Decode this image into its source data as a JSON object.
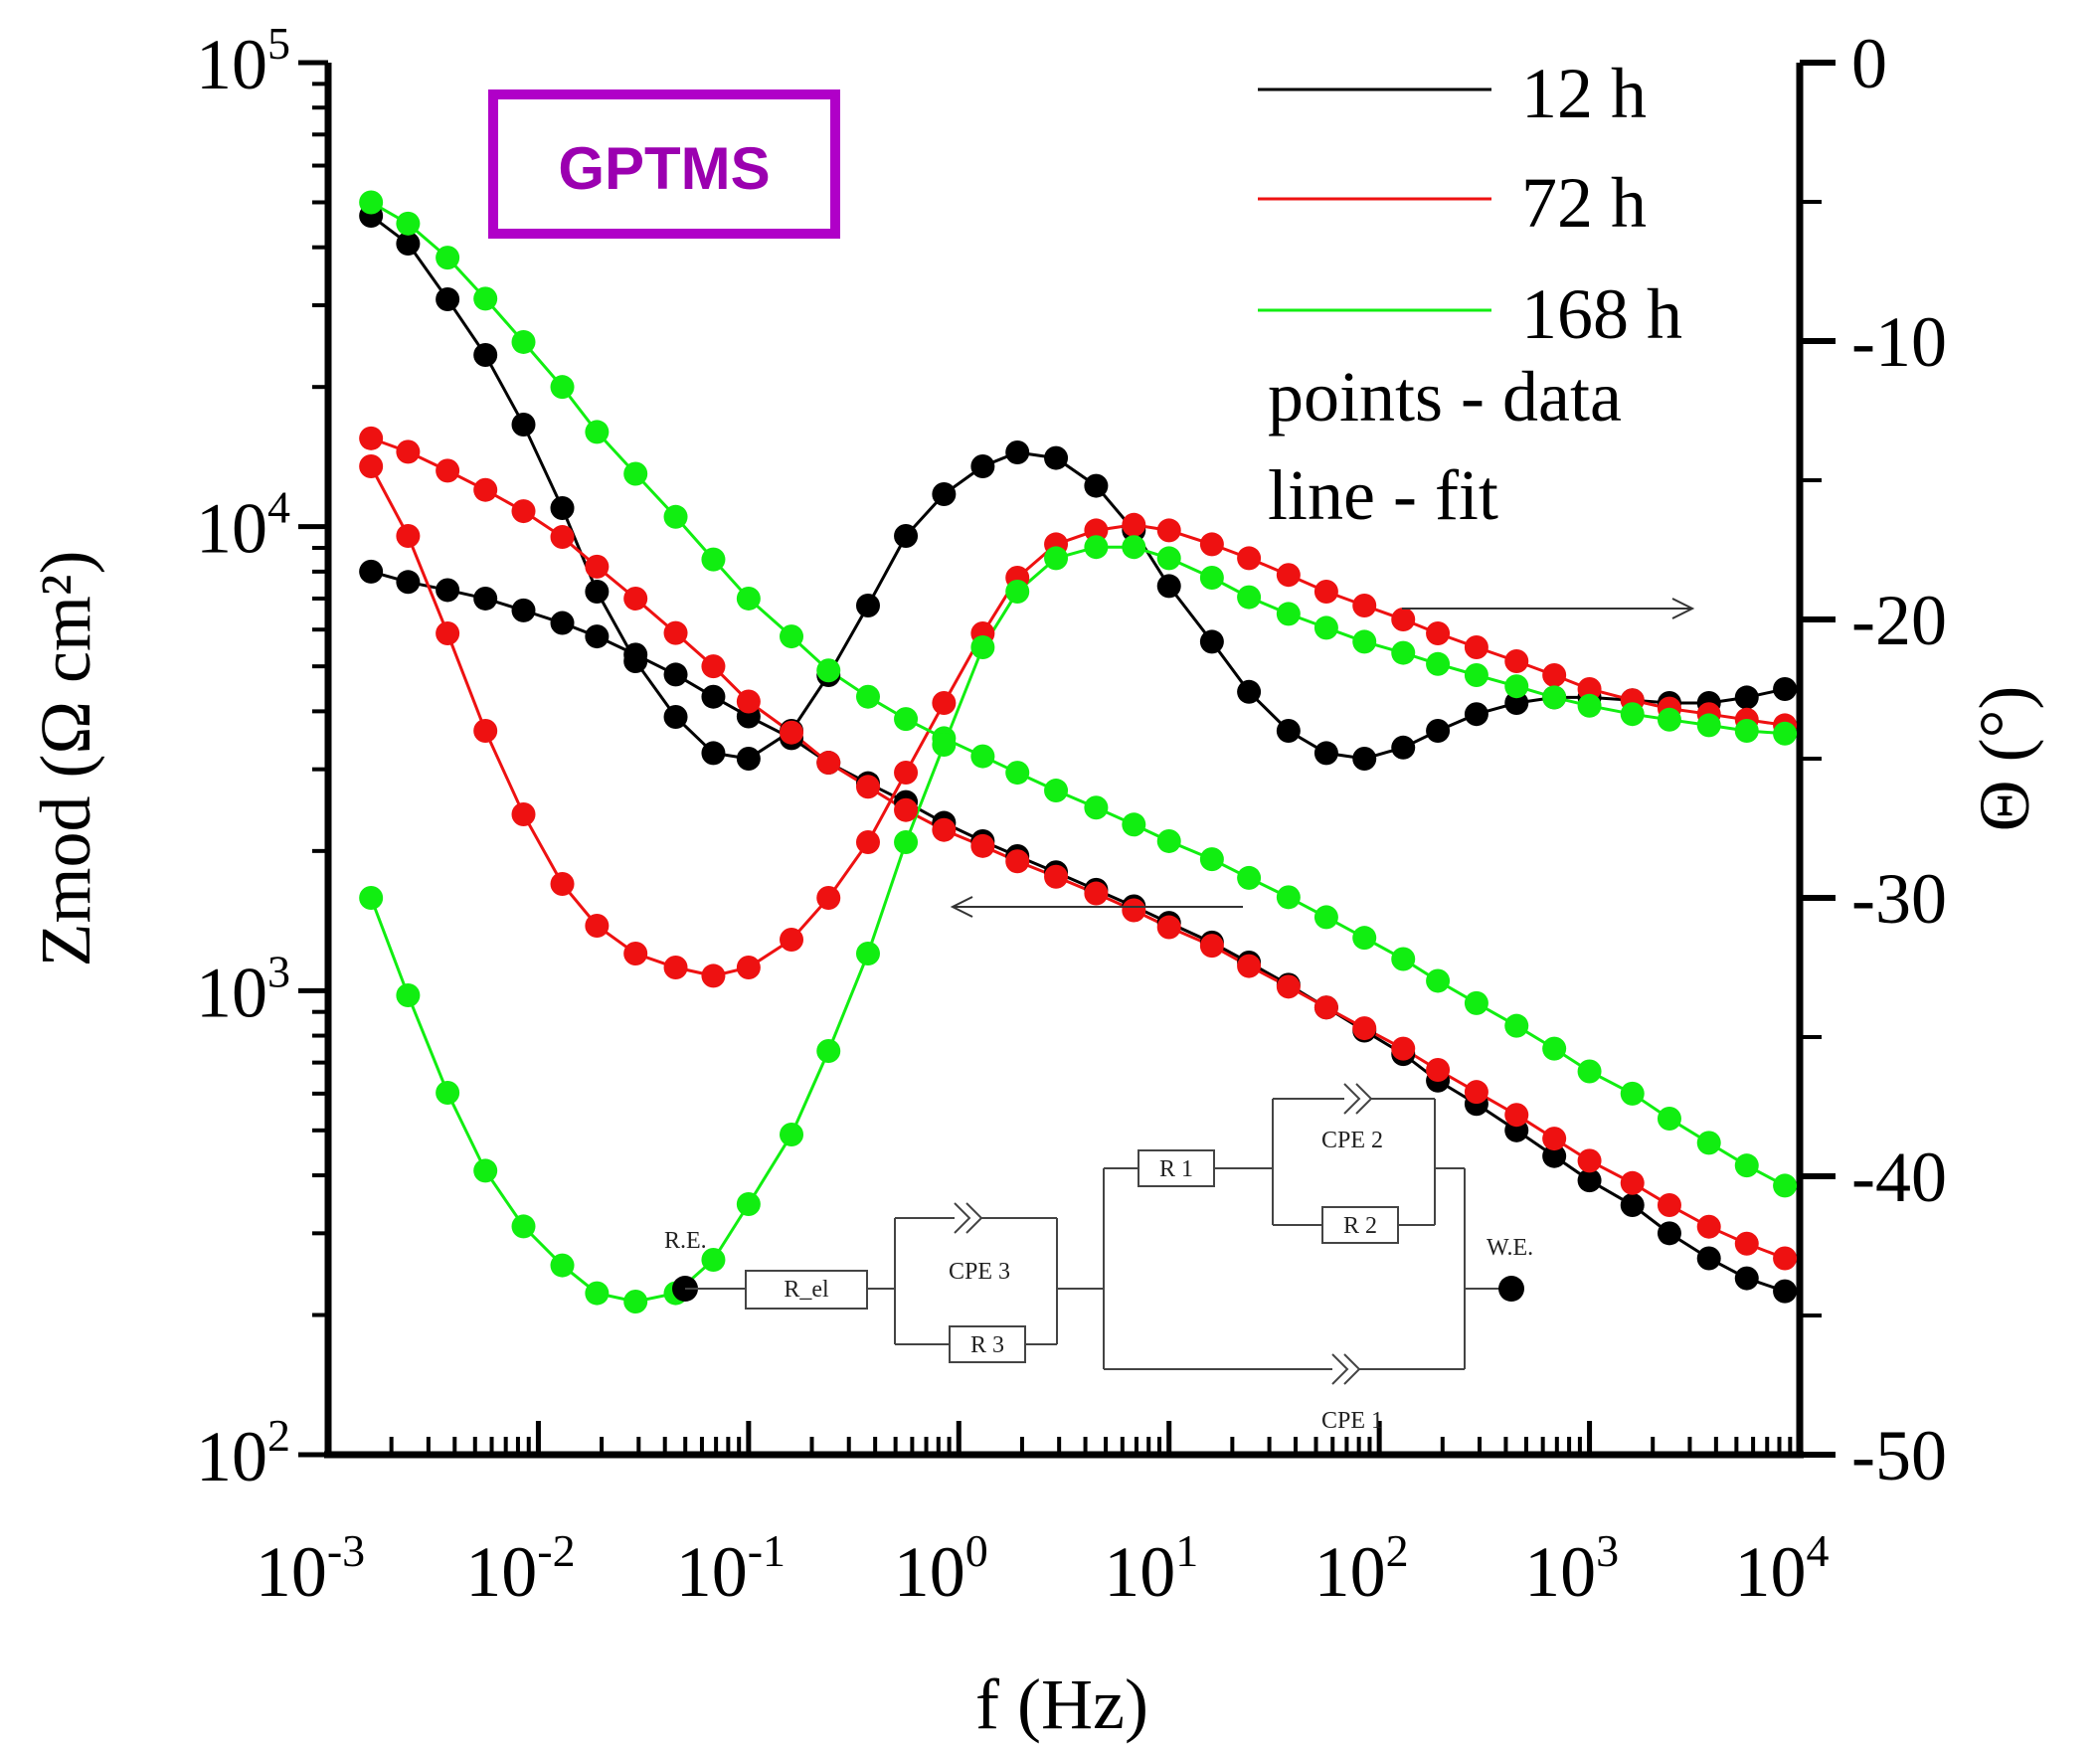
{
  "chart_data": {
    "type": "line",
    "title_box": "GPTMS",
    "xlabel": "f (Hz)",
    "ylabel_left": "Zmod (Ω cm²)",
    "ylabel_right": "Θ (°)",
    "x_scale": "log",
    "x_ticks": [
      "10-3",
      "10-2",
      "10-1",
      "100",
      "101",
      "102",
      "103",
      "104"
    ],
    "left_ticks": [
      "102",
      "103",
      "104",
      "105"
    ],
    "right_ticks": [
      "0",
      "-10",
      "-20",
      "-30",
      "-40",
      "-50"
    ],
    "xlim": [
      0.001,
      10000
    ],
    "ylim_left": [
      100,
      100000
    ],
    "ylim_right": [
      -50,
      0
    ],
    "legend": [
      {
        "label": "12 h",
        "color": "#000000"
      },
      {
        "label": "72 h",
        "color": "#ee1111"
      },
      {
        "label": "168 h",
        "color": "#11ee11"
      }
    ],
    "legend_note_1": "points - data",
    "legend_note_2": "line - fit",
    "series": [
      {
        "name": "12 h",
        "quantity": "Zmod",
        "axis": "left",
        "color": "#000000",
        "points": [
          [
            0.0016,
            8000
          ],
          [
            0.0024,
            7600
          ],
          [
            0.0037,
            7300
          ],
          [
            0.0056,
            7000
          ],
          [
            0.0085,
            6600
          ],
          [
            0.013,
            6200
          ],
          [
            0.019,
            5800
          ],
          [
            0.029,
            5300
          ],
          [
            0.045,
            4800
          ],
          [
            0.068,
            4300
          ],
          [
            0.1,
            3900
          ],
          [
            0.16,
            3500
          ],
          [
            0.24,
            3100
          ],
          [
            0.37,
            2800
          ],
          [
            0.56,
            2550
          ],
          [
            0.85,
            2300
          ],
          [
            1.3,
            2100
          ],
          [
            1.9,
            1950
          ],
          [
            2.9,
            1800
          ],
          [
            4.5,
            1650
          ],
          [
            6.8,
            1520
          ],
          [
            10,
            1400
          ],
          [
            16,
            1270
          ],
          [
            24,
            1150
          ],
          [
            37,
            1030
          ],
          [
            56,
            920
          ],
          [
            85,
            820
          ],
          [
            130,
            730
          ],
          [
            190,
            640
          ],
          [
            290,
            570
          ],
          [
            450,
            500
          ],
          [
            680,
            440
          ],
          [
            1000,
            390
          ],
          [
            1600,
            345
          ],
          [
            2400,
            300
          ],
          [
            3700,
            265
          ],
          [
            5600,
            240
          ],
          [
            8500,
            225
          ]
        ]
      },
      {
        "name": "12 h",
        "quantity": "phase",
        "axis": "right",
        "color": "#000000",
        "points": [
          [
            0.0016,
            -5.5
          ],
          [
            0.0024,
            -6.5
          ],
          [
            0.0037,
            -8.5
          ],
          [
            0.0056,
            -10.5
          ],
          [
            0.0085,
            -13
          ],
          [
            0.013,
            -16
          ],
          [
            0.019,
            -19
          ],
          [
            0.029,
            -21.5
          ],
          [
            0.045,
            -23.5
          ],
          [
            0.068,
            -24.8
          ],
          [
            0.1,
            -25
          ],
          [
            0.16,
            -24
          ],
          [
            0.24,
            -22
          ],
          [
            0.37,
            -19.5
          ],
          [
            0.56,
            -17
          ],
          [
            0.85,
            -15.5
          ],
          [
            1.3,
            -14.5
          ],
          [
            1.9,
            -14
          ],
          [
            2.9,
            -14.2
          ],
          [
            4.5,
            -15.2
          ],
          [
            6.8,
            -16.8
          ],
          [
            10,
            -18.8
          ],
          [
            16,
            -20.8
          ],
          [
            24,
            -22.6
          ],
          [
            37,
            -24
          ],
          [
            56,
            -24.8
          ],
          [
            85,
            -25
          ],
          [
            130,
            -24.6
          ],
          [
            190,
            -24
          ],
          [
            290,
            -23.4
          ],
          [
            450,
            -23
          ],
          [
            680,
            -22.8
          ],
          [
            1000,
            -22.8
          ],
          [
            1600,
            -22.9
          ],
          [
            2400,
            -23
          ],
          [
            3700,
            -23
          ],
          [
            5600,
            -22.8
          ],
          [
            8500,
            -22.5
          ]
        ]
      },
      {
        "name": "72 h",
        "quantity": "Zmod",
        "axis": "left",
        "color": "#ee1111",
        "points": [
          [
            0.0016,
            15500
          ],
          [
            0.0024,
            14500
          ],
          [
            0.0037,
            13200
          ],
          [
            0.0056,
            12000
          ],
          [
            0.0085,
            10800
          ],
          [
            0.013,
            9500
          ],
          [
            0.019,
            8200
          ],
          [
            0.029,
            7000
          ],
          [
            0.045,
            5900
          ],
          [
            0.068,
            5000
          ],
          [
            0.1,
            4200
          ],
          [
            0.16,
            3600
          ],
          [
            0.24,
            3100
          ],
          [
            0.37,
            2750
          ],
          [
            0.56,
            2450
          ],
          [
            0.85,
            2220
          ],
          [
            1.3,
            2050
          ],
          [
            1.9,
            1900
          ],
          [
            2.9,
            1760
          ],
          [
            4.5,
            1620
          ],
          [
            6.8,
            1490
          ],
          [
            10,
            1370
          ],
          [
            16,
            1250
          ],
          [
            24,
            1130
          ],
          [
            37,
            1020
          ],
          [
            56,
            920
          ],
          [
            85,
            830
          ],
          [
            130,
            750
          ],
          [
            190,
            675
          ],
          [
            290,
            605
          ],
          [
            450,
            540
          ],
          [
            680,
            480
          ],
          [
            1000,
            430
          ],
          [
            1600,
            385
          ],
          [
            2400,
            345
          ],
          [
            3700,
            310
          ],
          [
            5600,
            285
          ],
          [
            8500,
            265
          ]
        ]
      },
      {
        "name": "72 h",
        "quantity": "phase",
        "axis": "right",
        "color": "#ee1111",
        "points": [
          [
            0.0016,
            -14.5
          ],
          [
            0.0024,
            -17
          ],
          [
            0.0037,
            -20.5
          ],
          [
            0.0056,
            -24
          ],
          [
            0.0085,
            -27
          ],
          [
            0.013,
            -29.5
          ],
          [
            0.019,
            -31
          ],
          [
            0.029,
            -32
          ],
          [
            0.045,
            -32.5
          ],
          [
            0.068,
            -32.8
          ],
          [
            0.1,
            -32.5
          ],
          [
            0.16,
            -31.5
          ],
          [
            0.24,
            -30
          ],
          [
            0.37,
            -28
          ],
          [
            0.56,
            -25.5
          ],
          [
            0.85,
            -23
          ],
          [
            1.3,
            -20.5
          ],
          [
            1.9,
            -18.5
          ],
          [
            2.9,
            -17.3
          ],
          [
            4.5,
            -16.8
          ],
          [
            6.8,
            -16.6
          ],
          [
            10,
            -16.8
          ],
          [
            16,
            -17.3
          ],
          [
            24,
            -17.8
          ],
          [
            37,
            -18.4
          ],
          [
            56,
            -19
          ],
          [
            85,
            -19.5
          ],
          [
            130,
            -20
          ],
          [
            190,
            -20.5
          ],
          [
            290,
            -21
          ],
          [
            450,
            -21.5
          ],
          [
            680,
            -22
          ],
          [
            1000,
            -22.5
          ],
          [
            1600,
            -22.9
          ],
          [
            2400,
            -23.2
          ],
          [
            3700,
            -23.4
          ],
          [
            5600,
            -23.6
          ],
          [
            8500,
            -23.8
          ]
        ]
      },
      {
        "name": "168 h",
        "quantity": "Zmod",
        "axis": "left",
        "color": "#11ee11",
        "points": [
          [
            0.0016,
            50000
          ],
          [
            0.0024,
            45000
          ],
          [
            0.0037,
            38000
          ],
          [
            0.0056,
            31000
          ],
          [
            0.0085,
            25000
          ],
          [
            0.013,
            20000
          ],
          [
            0.019,
            16000
          ],
          [
            0.029,
            13000
          ],
          [
            0.045,
            10500
          ],
          [
            0.068,
            8500
          ],
          [
            0.1,
            7000
          ],
          [
            0.16,
            5800
          ],
          [
            0.24,
            4900
          ],
          [
            0.37,
            4300
          ],
          [
            0.56,
            3850
          ],
          [
            0.85,
            3500
          ],
          [
            1.3,
            3200
          ],
          [
            1.9,
            2950
          ],
          [
            2.9,
            2700
          ],
          [
            4.5,
            2480
          ],
          [
            6.8,
            2280
          ],
          [
            10,
            2100
          ],
          [
            16,
            1920
          ],
          [
            24,
            1750
          ],
          [
            37,
            1590
          ],
          [
            56,
            1440
          ],
          [
            85,
            1300
          ],
          [
            130,
            1170
          ],
          [
            190,
            1050
          ],
          [
            290,
            940
          ],
          [
            450,
            840
          ],
          [
            680,
            750
          ],
          [
            1000,
            670
          ],
          [
            1600,
            600
          ],
          [
            2400,
            530
          ],
          [
            3700,
            470
          ],
          [
            5600,
            420
          ],
          [
            8500,
            380
          ]
        ]
      },
      {
        "name": "168 h",
        "quantity": "phase",
        "axis": "right",
        "color": "#11ee11",
        "points": [
          [
            0.0016,
            -30
          ],
          [
            0.0024,
            -33.5
          ],
          [
            0.0037,
            -37
          ],
          [
            0.0056,
            -39.8
          ],
          [
            0.0085,
            -41.8
          ],
          [
            0.013,
            -43.2
          ],
          [
            0.019,
            -44.2
          ],
          [
            0.029,
            -44.5
          ],
          [
            0.045,
            -44.2
          ],
          [
            0.068,
            -43
          ],
          [
            0.1,
            -41
          ],
          [
            0.16,
            -38.5
          ],
          [
            0.24,
            -35.5
          ],
          [
            0.37,
            -32
          ],
          [
            0.56,
            -28
          ],
          [
            0.85,
            -24.5
          ],
          [
            1.3,
            -21
          ],
          [
            1.9,
            -19
          ],
          [
            2.9,
            -17.8
          ],
          [
            4.5,
            -17.4
          ],
          [
            6.8,
            -17.4
          ],
          [
            10,
            -17.8
          ],
          [
            16,
            -18.5
          ],
          [
            24,
            -19.2
          ],
          [
            37,
            -19.8
          ],
          [
            56,
            -20.3
          ],
          [
            85,
            -20.8
          ],
          [
            130,
            -21.2
          ],
          [
            190,
            -21.6
          ],
          [
            290,
            -22
          ],
          [
            450,
            -22.4
          ],
          [
            680,
            -22.8
          ],
          [
            1000,
            -23.1
          ],
          [
            1600,
            -23.4
          ],
          [
            2400,
            -23.6
          ],
          [
            3700,
            -23.8
          ],
          [
            5600,
            -24
          ],
          [
            8500,
            -24.1
          ]
        ]
      }
    ],
    "circuit": {
      "labels": [
        "R.E.",
        "R_el",
        "CPE 3",
        "R 3",
        "R 1",
        "CPE 2",
        "R 2",
        "W.E.",
        "CPE 1"
      ]
    }
  }
}
